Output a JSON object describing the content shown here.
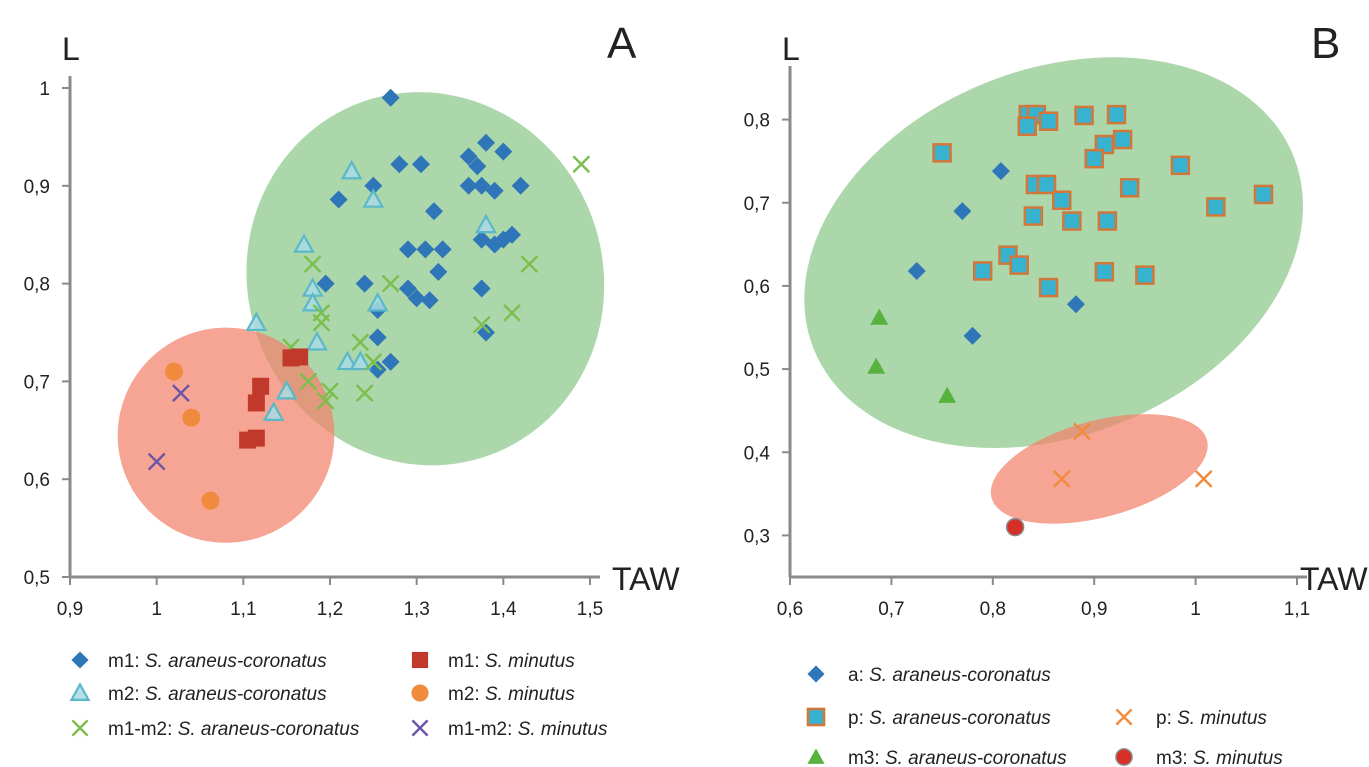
{
  "colors": {
    "diamond": "#2e76b8",
    "triangle_outline": "#5bb8c9",
    "triangle_fill": "#a9dbe4",
    "cross_green": "#7cbe4c",
    "cross_purple": "#6a55a4",
    "square_red": "#c0392b",
    "circle_orange": "#f08a3c",
    "square_teal_fill": "#38b3cf",
    "square_teal_edge": "#d2773a",
    "triangle_green": "#58b23f",
    "cross_orange": "#f28a3b",
    "circle_red": "#d62f26",
    "ellipse_green": "#8cc88a",
    "ellipse_red": "#f3826c",
    "axis": "#8a8a8a"
  },
  "chart_data": [
    {
      "type": "scatter",
      "panel_label": "A",
      "xlabel": "TAW",
      "ylabel": "L",
      "xlim": [
        0.9,
        1.5
      ],
      "ylim": [
        0.5,
        1.0
      ],
      "xticks": [
        "0,9",
        "1",
        "1,1",
        "1,2",
        "1,3",
        "1,4",
        "1,5"
      ],
      "xtick_values": [
        0.9,
        1.0,
        1.1,
        1.2,
        1.3,
        1.4,
        1.5
      ],
      "yticks": [
        "0,5",
        "0,6",
        "0,7",
        "0,8",
        "0,9",
        "1"
      ],
      "ytick_values": [
        0.5,
        0.6,
        0.7,
        0.8,
        0.9,
        1.0
      ],
      "regions": [
        {
          "color": "ellipse_green",
          "cx": 1.31,
          "cy": 0.805,
          "rx": 0.205,
          "ry": 0.192,
          "rot": -20
        },
        {
          "color": "ellipse_red",
          "cx": 1.08,
          "cy": 0.645,
          "rx": 0.125,
          "ry": 0.11,
          "rot": -12
        }
      ],
      "legend": [
        {
          "marker": "diamond",
          "color": "diamond",
          "prefix": "m1: ",
          "species": "S. araneus-coronatus"
        },
        {
          "marker": "square",
          "color": "square_red",
          "prefix": "m1: ",
          "species": "S. minutus"
        },
        {
          "marker": "triangle",
          "color": "triangle_outline",
          "prefix": "m2: ",
          "species": "S. araneus-coronatus"
        },
        {
          "marker": "circle",
          "color": "circle_orange",
          "prefix": "m2: ",
          "species": "S. minutus"
        },
        {
          "marker": "cross",
          "color": "cross_green",
          "prefix": "m1-m2: ",
          "species": "S. araneus-coronatus"
        },
        {
          "marker": "cross",
          "color": "cross_purple",
          "prefix": "m1-m2: ",
          "species": "S. minutus"
        }
      ],
      "series": [
        {
          "name": "m1: S. araneus-coronatus",
          "marker": "diamond",
          "color": "diamond",
          "points": [
            [
              1.27,
              0.99
            ],
            [
              1.21,
              0.886
            ],
            [
              1.25,
              0.9
            ],
            [
              1.28,
              0.922
            ],
            [
              1.305,
              0.922
            ],
            [
              1.36,
              0.93
            ],
            [
              1.38,
              0.944
            ],
            [
              1.4,
              0.935
            ],
            [
              1.37,
              0.92
            ],
            [
              1.36,
              0.9
            ],
            [
              1.375,
              0.9
            ],
            [
              1.39,
              0.895
            ],
            [
              1.42,
              0.9
            ],
            [
              1.32,
              0.874
            ],
            [
              1.29,
              0.835
            ],
            [
              1.33,
              0.835
            ],
            [
              1.31,
              0.835
            ],
            [
              1.375,
              0.845
            ],
            [
              1.4,
              0.845
            ],
            [
              1.41,
              0.85
            ],
            [
              1.39,
              0.84
            ],
            [
              1.325,
              0.812
            ],
            [
              1.29,
              0.795
            ],
            [
              1.3,
              0.785
            ],
            [
              1.315,
              0.783
            ],
            [
              1.375,
              0.795
            ],
            [
              1.195,
              0.8
            ],
            [
              1.24,
              0.8
            ],
            [
              1.255,
              0.773
            ],
            [
              1.255,
              0.745
            ],
            [
              1.27,
              0.72
            ],
            [
              1.255,
              0.712
            ],
            [
              1.38,
              0.75
            ]
          ]
        },
        {
          "name": "m2: S. araneus-coronatus",
          "marker": "triangle",
          "color": "triangle_outline",
          "points": [
            [
              1.225,
              0.915
            ],
            [
              1.25,
              0.886
            ],
            [
              1.17,
              0.84
            ],
            [
              1.18,
              0.795
            ],
            [
              1.18,
              0.78
            ],
            [
              1.255,
              0.78
            ],
            [
              1.115,
              0.76
            ],
            [
              1.185,
              0.74
            ],
            [
              1.22,
              0.72
            ],
            [
              1.235,
              0.72
            ],
            [
              1.15,
              0.69
            ],
            [
              1.135,
              0.668
            ],
            [
              1.38,
              0.86
            ]
          ]
        },
        {
          "name": "m1-m2: S. araneus-coronatus",
          "marker": "cross",
          "color": "cross_green",
          "points": [
            [
              1.49,
              0.922
            ],
            [
              1.18,
              0.82
            ],
            [
              1.19,
              0.77
            ],
            [
              1.19,
              0.76
            ],
            [
              1.27,
              0.8
            ],
            [
              1.43,
              0.82
            ],
            [
              1.41,
              0.77
            ],
            [
              1.375,
              0.758
            ],
            [
              1.155,
              0.735
            ],
            [
              1.235,
              0.74
            ],
            [
              1.175,
              0.7
            ],
            [
              1.195,
              0.68
            ],
            [
              1.2,
              0.69
            ],
            [
              1.24,
              0.688
            ],
            [
              1.25,
              0.72
            ]
          ]
        },
        {
          "name": "m1: S. minutus",
          "marker": "square",
          "color": "square_red",
          "points": [
            [
              1.12,
              0.695
            ],
            [
              1.115,
              0.678
            ],
            [
              1.105,
              0.64
            ],
            [
              1.115,
              0.642
            ],
            [
              1.155,
              0.724
            ],
            [
              1.165,
              0.725
            ]
          ]
        },
        {
          "name": "m2: S. minutus",
          "marker": "circle",
          "color": "circle_orange",
          "points": [
            [
              1.02,
              0.71
            ],
            [
              1.04,
              0.663
            ],
            [
              1.062,
              0.578
            ]
          ]
        },
        {
          "name": "m1-m2: S. minutus",
          "marker": "cross",
          "color": "cross_purple",
          "points": [
            [
              1.028,
              0.688
            ],
            [
              1.0,
              0.618
            ]
          ]
        }
      ]
    },
    {
      "type": "scatter",
      "panel_label": "B",
      "xlabel": "TAW",
      "ylabel": "L",
      "xlim": [
        0.6,
        1.1
      ],
      "ylim": [
        0.25,
        0.85
      ],
      "xticks": [
        "0,6",
        "0,7",
        "0,8",
        "0,9",
        "1",
        "1,1"
      ],
      "xtick_values": [
        0.6,
        0.7,
        0.8,
        0.9,
        1.0,
        1.1
      ],
      "yticks": [
        "0,3",
        "0,4",
        "0,5",
        "0,6",
        "0,7",
        "0,8"
      ],
      "ytick_values": [
        0.3,
        0.4,
        0.5,
        0.6,
        0.7,
        0.8
      ],
      "regions": [
        {
          "color": "ellipse_green",
          "cx": 0.86,
          "cy": 0.64,
          "rx": 0.255,
          "ry": 0.22,
          "rot": -22
        },
        {
          "color": "ellipse_red",
          "cx": 0.905,
          "cy": 0.38,
          "rx": 0.11,
          "ry": 0.058,
          "rot": -15
        }
      ],
      "legend": [
        {
          "marker": "diamond",
          "color": "diamond",
          "prefix": "a: ",
          "species": "S. araneus-coronatus"
        },
        {
          "marker": "square2",
          "color": "square_teal_fill",
          "prefix": "p: ",
          "species": "S. araneus-coronatus"
        },
        {
          "marker": "cross",
          "color": "cross_orange",
          "prefix": "p: ",
          "species": "S. minutus"
        },
        {
          "marker": "triangle2",
          "color": "triangle_green",
          "prefix": "m3: ",
          "species": "S. araneus-coronatus"
        },
        {
          "marker": "circle2",
          "color": "circle_red",
          "prefix": "m3: ",
          "species": "S. minutus"
        }
      ],
      "series": [
        {
          "name": "a: S. araneus-coronatus",
          "marker": "diamond",
          "color": "diamond",
          "points": [
            [
              0.808,
              0.738
            ],
            [
              0.77,
              0.69
            ],
            [
              0.725,
              0.618
            ],
            [
              0.78,
              0.54
            ],
            [
              0.882,
              0.578
            ]
          ]
        },
        {
          "name": "p: S. araneus-coronatus",
          "marker": "square2",
          "color": "square_teal_fill",
          "points": [
            [
              0.835,
              0.806
            ],
            [
              0.843,
              0.806
            ],
            [
              0.834,
              0.792
            ],
            [
              0.855,
              0.798
            ],
            [
              0.89,
              0.805
            ],
            [
              0.922,
              0.806
            ],
            [
              0.75,
              0.76
            ],
            [
              0.91,
              0.77
            ],
            [
              0.928,
              0.776
            ],
            [
              0.9,
              0.753
            ],
            [
              0.985,
              0.745
            ],
            [
              0.842,
              0.722
            ],
            [
              0.853,
              0.722
            ],
            [
              0.868,
              0.703
            ],
            [
              0.935,
              0.718
            ],
            [
              1.067,
              0.71
            ],
            [
              1.02,
              0.695
            ],
            [
              0.84,
              0.684
            ],
            [
              0.878,
              0.678
            ],
            [
              0.913,
              0.678
            ],
            [
              0.79,
              0.618
            ],
            [
              0.815,
              0.637
            ],
            [
              0.826,
              0.625
            ],
            [
              0.855,
              0.598
            ],
            [
              0.91,
              0.617
            ],
            [
              0.95,
              0.613
            ]
          ]
        },
        {
          "name": "p: S. minutus",
          "marker": "cross",
          "color": "cross_orange",
          "points": [
            [
              0.888,
              0.425
            ],
            [
              0.868,
              0.368
            ],
            [
              1.008,
              0.368
            ]
          ]
        },
        {
          "name": "m3: S. araneus-coronatus",
          "marker": "triangle2",
          "color": "triangle_green",
          "points": [
            [
              0.688,
              0.562
            ],
            [
              0.685,
              0.503
            ],
            [
              0.755,
              0.468
            ]
          ]
        },
        {
          "name": "m3: S. minutus",
          "marker": "circle2",
          "color": "circle_red",
          "points": [
            [
              0.822,
              0.31
            ]
          ]
        }
      ]
    }
  ]
}
